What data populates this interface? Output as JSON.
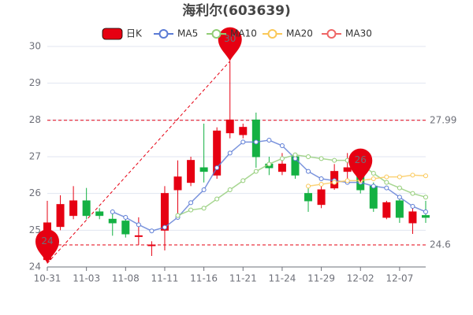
{
  "chart_data": {
    "type": "candlestick",
    "title": "海利尔(603639)",
    "categories": [
      "10-31",
      null,
      null,
      "11-03",
      null,
      null,
      "11-08",
      null,
      null,
      "11-11",
      null,
      null,
      "11-16",
      null,
      null,
      "11-21",
      null,
      null,
      "11-24",
      null,
      null,
      "11-29",
      null,
      null,
      "12-02",
      null,
      null,
      "12-07",
      null,
      null
    ],
    "candles": {
      "name": "日K",
      "up_color": "#e60012",
      "down_color": "#14b143",
      "open": [
        24.2,
        25.1,
        25.4,
        25.8,
        25.5,
        25.3,
        25.25,
        24.85,
        24.6,
        25.0,
        26.1,
        26.3,
        26.7,
        26.5,
        27.65,
        27.6,
        28.0,
        26.8,
        26.6,
        27.0,
        26.0,
        25.7,
        26.15,
        26.6,
        27.0,
        26.2,
        25.35,
        25.8,
        25.2,
        25.4
      ],
      "close": [
        25.2,
        25.7,
        25.8,
        25.4,
        25.4,
        25.2,
        24.9,
        24.85,
        24.6,
        26.0,
        26.45,
        26.9,
        26.6,
        27.7,
        28.0,
        27.8,
        27.0,
        26.7,
        26.8,
        26.5,
        25.8,
        26.1,
        26.6,
        26.7,
        26.1,
        25.6,
        25.75,
        25.35,
        25.5,
        25.35
      ],
      "low": [
        24.1,
        25.0,
        25.3,
        25.3,
        25.3,
        24.85,
        24.8,
        24.6,
        24.3,
        24.45,
        25.4,
        26.2,
        26.3,
        26.4,
        27.5,
        27.5,
        26.7,
        26.5,
        26.5,
        26.4,
        25.5,
        25.6,
        26.1,
        26.4,
        26.0,
        25.5,
        25.3,
        25.2,
        24.9,
        25.2
      ],
      "high": [
        25.8,
        25.95,
        26.2,
        26.15,
        25.6,
        25.5,
        25.3,
        25.35,
        24.7,
        26.2,
        26.9,
        27.0,
        27.9,
        27.8,
        29.6,
        27.9,
        28.2,
        27.0,
        27.1,
        27.1,
        26.2,
        26.3,
        26.8,
        27.1,
        27.1,
        26.3,
        25.8,
        25.9,
        25.6,
        25.8
      ]
    },
    "series": [
      {
        "name": "MA5",
        "color": "#5b7bd5",
        "values": [
          null,
          null,
          null,
          null,
          null,
          25.5,
          25.35,
          25.15,
          24.98,
          25.08,
          25.35,
          25.75,
          26.1,
          26.7,
          27.1,
          27.4,
          27.4,
          27.45,
          27.3,
          26.95,
          26.6,
          26.4,
          26.35,
          26.3,
          26.3,
          26.2,
          26.15,
          25.9,
          25.65,
          25.5
        ]
      },
      {
        "name": "MA10",
        "color": "#91cc75",
        "values": [
          null,
          null,
          null,
          null,
          null,
          null,
          null,
          null,
          null,
          null,
          25.4,
          25.55,
          25.6,
          25.85,
          26.1,
          26.35,
          26.6,
          26.8,
          26.95,
          27.05,
          27.0,
          26.95,
          26.9,
          26.9,
          26.8,
          26.55,
          26.3,
          26.15,
          26.0,
          25.9
        ]
      },
      {
        "name": "MA20",
        "color": "#fac858",
        "values": [
          null,
          null,
          null,
          null,
          null,
          null,
          null,
          null,
          null,
          null,
          null,
          null,
          null,
          null,
          null,
          null,
          null,
          null,
          null,
          null,
          26.2,
          26.25,
          26.3,
          26.35,
          26.35,
          26.4,
          26.45,
          26.45,
          26.5,
          26.48
        ]
      },
      {
        "name": "MA30",
        "color": "#ee6666",
        "values": [
          null,
          null,
          null,
          null,
          null,
          null,
          null,
          null,
          null,
          null,
          null,
          null,
          null,
          null,
          null,
          null,
          null,
          null,
          null,
          null,
          null,
          null,
          null,
          null,
          null,
          null,
          null,
          null,
          null,
          null
        ]
      }
    ],
    "ylim": [
      24,
      30
    ],
    "yticks": [
      24,
      25,
      26,
      27,
      28,
      29,
      30
    ],
    "grid": true,
    "ref_lines": [
      {
        "value": 27.99,
        "label": "27.99",
        "color": "#e60012"
      },
      {
        "value": 24.6,
        "label": "24.6",
        "color": "#e60012"
      }
    ],
    "markers": [
      {
        "index": 14,
        "value": 29.6,
        "label": "30"
      },
      {
        "index": 0,
        "value": 24.1,
        "label": "24"
      },
      {
        "index": 24,
        "value": 26.3,
        "label": "26"
      }
    ],
    "marker_color": "#e60012"
  }
}
